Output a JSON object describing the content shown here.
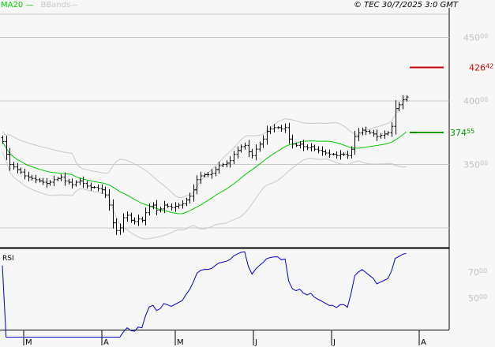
{
  "header": {
    "legend": [
      {
        "label": "MA20",
        "color": "#00cc00"
      },
      {
        "label": "BBands",
        "color": "#c8c8c8"
      }
    ],
    "copyright": "© TEC 30/7/2025 3:0 GMT"
  },
  "chart_data": [
    {
      "type": "ohlc",
      "panel": "price",
      "ylim": [
        270,
        470
      ],
      "grid": true,
      "y_ticks": [
        {
          "value": 450,
          "label": "450",
          "decimals": "00"
        },
        {
          "value": 400,
          "label": "400",
          "decimals": "00"
        },
        {
          "value": 350,
          "label": "350",
          "decimals": "00"
        }
      ],
      "x_ticks": [
        "M",
        "A",
        "M",
        "J",
        "J",
        "A"
      ],
      "closes": [
        368,
        358,
        350,
        348,
        346,
        344,
        341,
        340,
        339,
        338,
        337,
        336,
        335,
        336,
        338,
        339,
        340,
        337,
        336,
        334,
        336,
        337,
        335,
        333,
        332,
        332,
        331,
        330,
        326,
        318,
        304,
        298,
        300,
        308,
        310,
        306,
        305,
        307,
        306,
        312,
        317,
        318,
        314,
        315,
        318,
        317,
        316,
        317,
        318,
        319,
        322,
        325,
        330,
        338,
        341,
        342,
        342,
        343,
        346,
        349,
        350,
        351,
        353,
        358,
        361,
        364,
        365,
        360,
        357,
        362,
        366,
        370,
        376,
        378,
        379,
        379,
        378,
        379,
        370,
        366,
        365,
        366,
        364,
        363,
        364,
        362,
        361,
        360,
        359,
        358,
        358,
        357,
        358,
        358,
        357,
        362,
        372,
        375,
        377,
        376,
        375,
        374,
        372,
        373,
        374,
        375,
        380,
        394,
        397,
        401,
        403
      ],
      "indicators": {
        "ma20": {
          "label": "MA20",
          "period": 20,
          "color": "#00cc00",
          "last_value": 374.55,
          "last_label": "374",
          "last_decimals": "55"
        },
        "bbands": {
          "label": "BBands",
          "period": 20,
          "stddev": 2,
          "color": "#c8c8c8"
        }
      },
      "levels": [
        {
          "value": 426.42,
          "label": "426",
          "decimals": "42",
          "color": "#cc0000"
        },
        {
          "value": 374.55,
          "label": "374",
          "decimals": "55",
          "color": "#009900"
        }
      ]
    },
    {
      "type": "line",
      "panel": "rsi",
      "title": "RSI",
      "period": 14,
      "color": "#0000cc",
      "y_ticks": [
        {
          "value": 70,
          "label": "70",
          "decimals": "00"
        },
        {
          "value": 50,
          "label": "50",
          "decimals": "00"
        }
      ]
    }
  ]
}
